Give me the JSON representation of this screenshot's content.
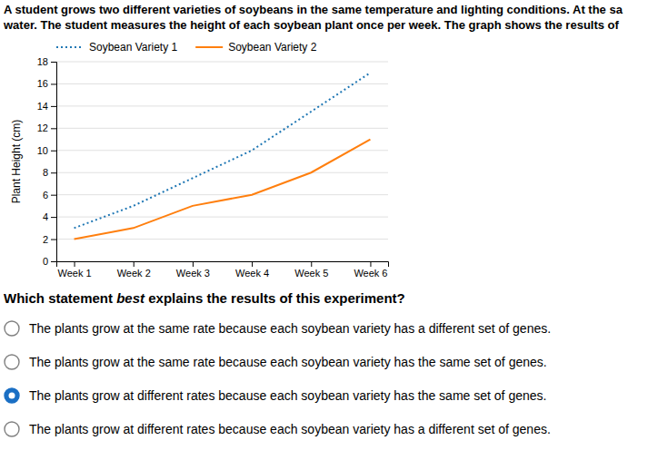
{
  "chart_data": {
    "type": "line",
    "title": [
      "A student grows two different varieties of soybeans in the same temperature and lighting conditions. At the sa",
      "water. The student measures the height of each soybean plant once per week. The graph shows the results of"
    ],
    "categories": [
      "Week 1",
      "Week 2",
      "Week 3",
      "Week 4",
      "Week 5",
      "Week 6"
    ],
    "series": [
      {
        "name": "Soybean Variety 1",
        "line_style": "dotted",
        "values": [
          3,
          5,
          7.5,
          10,
          13.5,
          17
        ]
      },
      {
        "name": "Soybean Variety 2",
        "line_style": "solid",
        "values": [
          2,
          3,
          5,
          6,
          8,
          11
        ]
      }
    ],
    "ylabel": "Plant Height (cm)",
    "ylim": [
      0,
      18
    ],
    "yticks": [
      0,
      2,
      4,
      6,
      8,
      10,
      12,
      14,
      16,
      18
    ],
    "grid": true
  },
  "question": {
    "parts": [
      "Which statement ",
      "best",
      " explains the results of this experiment?"
    ],
    "options": [
      "The plants grow at the same rate because each soybean variety has a different set of genes.",
      "The plants grow at the same rate because each soybean variety has the same set of genes.",
      "The plants grow at different rates because each soybean variety has the same set of genes.",
      "The plants grow at different rates because each soybean variety has a different set of genes."
    ],
    "selected": 2,
    "selected_color": "#1a6fc4"
  }
}
